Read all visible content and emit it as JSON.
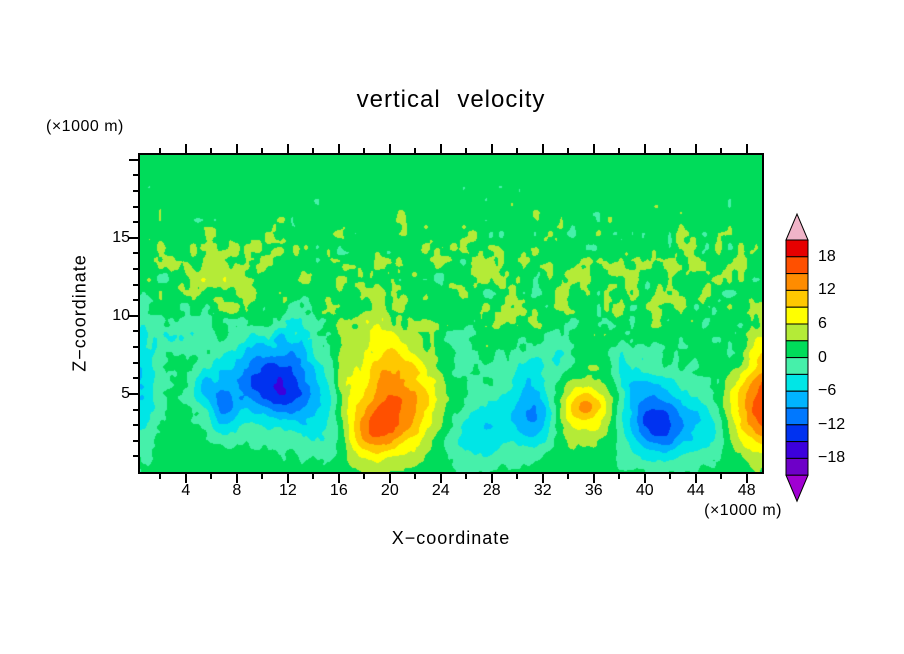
{
  "title": "vertical velocity",
  "units": {
    "z_unit": "(×1000 m)",
    "x_unit": "(×1000 m)"
  },
  "x_axis": {
    "label": "X−coordinate",
    "min": 0.4,
    "max": 49.2,
    "major_tick_values": [
      4,
      8,
      12,
      16,
      20,
      24,
      28,
      32,
      36,
      40,
      44,
      48
    ],
    "minor_tick_step": 2
  },
  "z_axis": {
    "label": "Z−coordinate",
    "min": 0,
    "max": 20.3,
    "major_tick_values": [
      5,
      10,
      15
    ],
    "minor_tick_step": 1
  },
  "colorbar": {
    "min": -21,
    "max": 21,
    "interval": 3,
    "band_colors_low_to_high": [
      "#6e00c8",
      "#3c00dc",
      "#0032f0",
      "#0078ff",
      "#00b4ff",
      "#00e6e6",
      "#46f0aa",
      "#00dc5a",
      "#b4eb37",
      "#ffff00",
      "#ffc800",
      "#ff8c00",
      "#ff5000",
      "#e60000"
    ],
    "under_arrow_color": "#a000d2",
    "over_arrow_color": "#f0b4c8",
    "labels": [
      {
        "text": "18",
        "value": 18
      },
      {
        "text": "12",
        "value": 12
      },
      {
        "text": "6",
        "value": 6
      },
      {
        "text": "0",
        "value": 0
      },
      {
        "text": "−6",
        "value": -6
      },
      {
        "text": "−12",
        "value": -12
      },
      {
        "text": "−18",
        "value": -18
      }
    ]
  },
  "chart_data": {
    "type": "filled_contour",
    "title": "vertical velocity",
    "xlabel": "X−coordinate (×1000 m)",
    "ylabel": "Z−coordinate (×1000 m)",
    "x_range": [
      0.4,
      49.2
    ],
    "z_range": [
      0,
      20.3
    ],
    "contour_interval": 3,
    "levels": [
      -18,
      -15,
      -12,
      -9,
      -6,
      -3,
      0,
      3,
      6,
      9,
      12,
      15,
      18
    ],
    "legend_position": "right-colorbar",
    "background_value": 1.3,
    "features": [
      {
        "x": 10.0,
        "z": 6.3,
        "sx": 2.2,
        "sz": 1.6,
        "amp": -9
      },
      {
        "x": 12.3,
        "z": 4.9,
        "sx": 1.9,
        "sz": 1.4,
        "amp": -8
      },
      {
        "x": 11.0,
        "z": 5.5,
        "sx": 3.6,
        "sz": 2.6,
        "amp": -3.5
      },
      {
        "x": 7.0,
        "z": 4.2,
        "sx": 0.9,
        "sz": 1.3,
        "amp": -8
      },
      {
        "x": 5.3,
        "z": 5.6,
        "sx": 0.7,
        "sz": 0.9,
        "amp": -5
      },
      {
        "x": 0.3,
        "z": 6.0,
        "sx": 1.1,
        "sz": 2.8,
        "amp": -8
      },
      {
        "x": 3.6,
        "z": 9.0,
        "sx": 1.4,
        "sz": 1.1,
        "amp": -4.5
      },
      {
        "x": 12.6,
        "z": 8.8,
        "sx": 1.1,
        "sz": 1.4,
        "amp": -4
      },
      {
        "x": 15.2,
        "z": 3.0,
        "sx": 1.3,
        "sz": 1.6,
        "amp": -4
      },
      {
        "x": 25.5,
        "z": 2.2,
        "sx": 1.4,
        "sz": 1.2,
        "amp": -4
      },
      {
        "x": 20.0,
        "z": 3.6,
        "sx": 2.2,
        "sz": 1.8,
        "amp": 10
      },
      {
        "x": 21.6,
        "z": 5.6,
        "sx": 2.4,
        "sz": 2.2,
        "amp": 6
      },
      {
        "x": 18.4,
        "z": 2.4,
        "sx": 1.4,
        "sz": 1.2,
        "amp": 6
      },
      {
        "x": 19.6,
        "z": 7.6,
        "sx": 1.2,
        "sz": 2.0,
        "amp": 4.5
      },
      {
        "x": 16.6,
        "z": 6.0,
        "sx": 0.8,
        "sz": 2.2,
        "amp": 4
      },
      {
        "x": 25.2,
        "z": 7.0,
        "sx": 1.5,
        "sz": 1.5,
        "amp": -3.8
      },
      {
        "x": 28.0,
        "z": 3.0,
        "sx": 1.6,
        "sz": 1.6,
        "amp": -6
      },
      {
        "x": 31.5,
        "z": 3.6,
        "sx": 1.3,
        "sz": 1.4,
        "amp": -12
      },
      {
        "x": 30.8,
        "z": 6.2,
        "sx": 1.2,
        "sz": 1.3,
        "amp": -4.5
      },
      {
        "x": 35.0,
        "z": 4.0,
        "sx": 2.2,
        "sz": 1.5,
        "amp": 8
      },
      {
        "x": 35.6,
        "z": 4.3,
        "sx": 0.9,
        "sz": 0.6,
        "amp": 4.5
      },
      {
        "x": 33.2,
        "z": 7.2,
        "sx": 1.0,
        "sz": 1.1,
        "amp": -4
      },
      {
        "x": 40.5,
        "z": 3.6,
        "sx": 1.8,
        "sz": 1.8,
        "amp": -13
      },
      {
        "x": 41.9,
        "z": 2.7,
        "sx": 1.2,
        "sz": 1.2,
        "amp": -5
      },
      {
        "x": 38.6,
        "z": 7.0,
        "sx": 1.0,
        "sz": 1.5,
        "amp": -4.2
      },
      {
        "x": 44.6,
        "z": 3.2,
        "sx": 1.3,
        "sz": 1.6,
        "amp": -6
      },
      {
        "x": 46.6,
        "z": 7.4,
        "sx": 0.9,
        "sz": 1.2,
        "amp": -3.8
      },
      {
        "x": 49.6,
        "z": 3.6,
        "sx": 1.7,
        "sz": 1.8,
        "amp": 12
      },
      {
        "x": 48.6,
        "z": 5.4,
        "sx": 2.0,
        "sz": 2.0,
        "amp": 5
      },
      {
        "x": 50.0,
        "z": 7.0,
        "sx": 1.0,
        "sz": 1.6,
        "amp": 4.5
      },
      {
        "x": 8.0,
        "z": 12.0,
        "sx": 3.0,
        "sz": 2.0,
        "amp": 2.2
      }
    ],
    "texture_noise": {
      "base_amp": 1.1,
      "burst_amp": 2.4,
      "burst_center_z": 12,
      "burst_sigma_z": 3.3,
      "burst_bias": 0.6
    }
  }
}
